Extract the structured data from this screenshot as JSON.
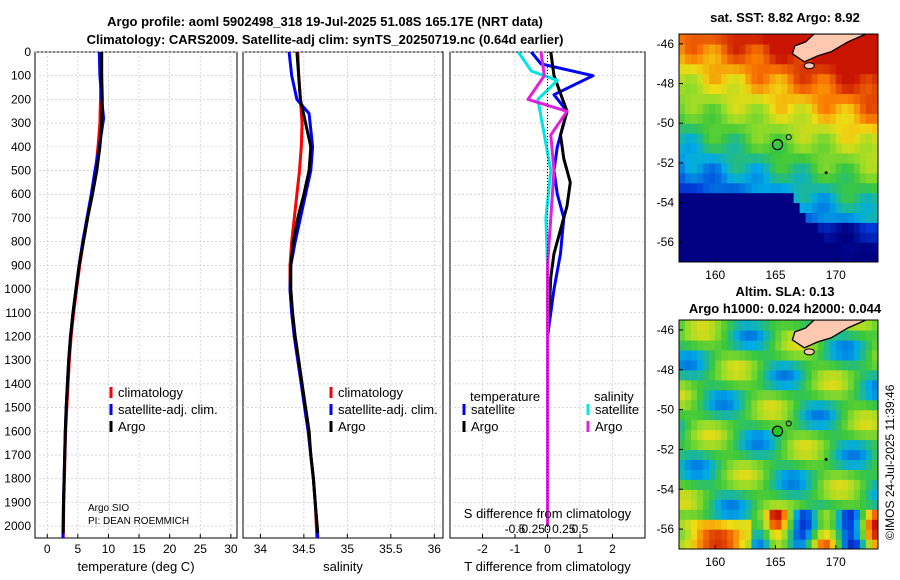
{
  "figure": {
    "title_line1": "Argo profile: aoml 5902498_318 19-Jul-2025 51.08S 165.17E (NRT data)",
    "title_line2": "Climatology: CARS2009. Satellite-adj clim: synTS_20250719.nc (0.64d earlier)",
    "credit": "©IMOS 24-Jul-2025 11:39:46",
    "pi_line1": "Argo SIO",
    "pi_line2": "PI: DEAN ROEMMICH"
  },
  "colors": {
    "climatology": "#ff0000",
    "satellite": "#0000ff",
    "argo": "#000000",
    "sat_salinity": "#00e5e5",
    "argo_salinity": "#e020e0"
  },
  "chart_data": [
    {
      "type": "line",
      "id": "temperature",
      "xlabel": "temperature (deg C)",
      "ylabel": "",
      "xlim": [
        -2,
        31
      ],
      "ylim": [
        2050,
        0
      ],
      "xticks": [
        0,
        5,
        10,
        15,
        20,
        25,
        30
      ],
      "xticklabels": [
        "0",
        "5",
        "10",
        "15",
        "20",
        "25",
        "30"
      ],
      "yticks": [
        0,
        100,
        200,
        300,
        400,
        500,
        600,
        700,
        800,
        900,
        1000,
        1100,
        1200,
        1300,
        1400,
        1500,
        1600,
        1700,
        1800,
        1900,
        2000
      ],
      "legend": [
        "climatology",
        "satellite-adj. clim.",
        "Argo"
      ],
      "series": [
        {
          "name": "climatology",
          "color": "#ff0000",
          "x": [
            8.8,
            8.8,
            8.7,
            8.6,
            8.3,
            7.9,
            7.3,
            6.6,
            5.9,
            5.3,
            4.8,
            4.3,
            3.9,
            3.6,
            3.4,
            3.2,
            3.0,
            2.9,
            2.8,
            2.7,
            2.6
          ],
          "depth": [
            0,
            100,
            200,
            300,
            400,
            500,
            600,
            700,
            800,
            900,
            1000,
            1100,
            1200,
            1300,
            1400,
            1500,
            1600,
            1700,
            1800,
            1900,
            2050
          ]
        },
        {
          "name": "satellite-adj. clim.",
          "color": "#0000ff",
          "x": [
            8.5,
            8.6,
            8.9,
            9.2,
            8.5,
            7.8,
            7.2,
            6.5,
            5.8,
            5.2,
            4.7,
            4.2,
            3.8,
            3.5,
            3.3,
            3.1,
            2.95,
            2.85,
            2.75,
            2.65,
            2.55
          ],
          "depth": [
            0,
            100,
            200,
            280,
            400,
            500,
            600,
            700,
            800,
            900,
            1000,
            1100,
            1200,
            1300,
            1400,
            1500,
            1600,
            1700,
            1800,
            1900,
            2050
          ]
        },
        {
          "name": "Argo",
          "color": "#000000",
          "x": [
            8.9,
            8.9,
            9.0,
            8.9,
            8.6,
            8.1,
            7.4,
            6.6,
            5.9,
            5.2,
            4.7,
            4.2,
            3.8,
            3.5,
            3.3,
            3.1,
            2.95,
            2.85,
            2.75,
            2.65,
            2.6
          ],
          "depth": [
            0,
            100,
            200,
            300,
            400,
            500,
            600,
            700,
            800,
            900,
            1000,
            1100,
            1200,
            1300,
            1400,
            1500,
            1600,
            1700,
            1800,
            1900,
            2030
          ]
        }
      ]
    },
    {
      "type": "line",
      "id": "salinity",
      "xlabel": "salinity",
      "ylabel": "",
      "xlim": [
        33.8,
        36.1
      ],
      "ylim": [
        2050,
        0
      ],
      "xticks": [
        34,
        34.5,
        35,
        35.5,
        36
      ],
      "xticklabels": [
        "34",
        "34.5",
        "35",
        "35.5",
        "36"
      ],
      "legend": [
        "climatology",
        "satellite-adj. clim.",
        "Argo"
      ],
      "series": [
        {
          "name": "climatology",
          "color": "#ff0000",
          "x": [
            34.43,
            34.44,
            34.46,
            34.48,
            34.47,
            34.45,
            34.42,
            34.39,
            34.36,
            34.34,
            34.34,
            34.36,
            34.39,
            34.43,
            34.47,
            34.51,
            34.55,
            34.58,
            34.61,
            34.63,
            34.65
          ],
          "depth": [
            0,
            100,
            200,
            300,
            400,
            500,
            600,
            700,
            800,
            900,
            1000,
            1100,
            1200,
            1300,
            1400,
            1500,
            1600,
            1700,
            1800,
            1900,
            2050
          ]
        },
        {
          "name": "satellite-adj. clim.",
          "color": "#0000ff",
          "x": [
            34.33,
            34.36,
            34.42,
            34.56,
            34.6,
            34.58,
            34.52,
            34.46,
            34.4,
            34.35,
            34.34,
            34.36,
            34.39,
            34.43,
            34.47,
            34.51,
            34.55,
            34.58,
            34.61,
            34.63,
            34.66
          ],
          "depth": [
            0,
            100,
            200,
            260,
            400,
            500,
            600,
            700,
            800,
            900,
            1000,
            1100,
            1200,
            1300,
            1400,
            1500,
            1600,
            1700,
            1800,
            1900,
            2050
          ]
        },
        {
          "name": "Argo",
          "color": "#000000",
          "x": [
            34.42,
            34.44,
            34.46,
            34.52,
            34.58,
            34.56,
            34.5,
            34.43,
            34.38,
            34.35,
            34.35,
            34.37,
            34.4,
            34.44,
            34.48,
            34.52,
            34.56,
            34.58,
            34.61,
            34.63,
            34.66
          ],
          "depth": [
            0,
            100,
            200,
            300,
            400,
            500,
            600,
            700,
            800,
            900,
            1000,
            1100,
            1200,
            1300,
            1400,
            1500,
            1600,
            1700,
            1800,
            1900,
            2030
          ]
        }
      ]
    },
    {
      "type": "line",
      "id": "difference",
      "xlabel": "T difference from climatology",
      "xlabel_top": "S difference from climatology",
      "ylabel": "",
      "xlim": [
        -3,
        3
      ],
      "ylim": [
        2050,
        0
      ],
      "xticks": [
        -2,
        -1,
        0,
        1,
        2
      ],
      "xticklabels": [
        "-2",
        "-1",
        "0",
        "1",
        "2"
      ],
      "s_xticks": [
        -1.0,
        -0.5,
        0,
        0.5,
        1.0
      ],
      "s_xticklabels": [
        "-0.5",
        "-0.25",
        "0",
        "0.25",
        "0.5"
      ],
      "legend_temperature_title": "temperature",
      "legend_salinity_title": "salinity",
      "legend_temperature": [
        "satellite",
        "Argo"
      ],
      "legend_salinity": [
        "satellite",
        "Argo"
      ],
      "series": [
        {
          "name": "temperature satellite",
          "color": "#0000ff",
          "x": [
            -0.5,
            -0.2,
            1.4,
            0.2,
            0.6,
            0.3,
            0.2,
            0.3,
            0.5,
            0.4,
            0.2,
            0.1,
            0.0,
            0.0,
            0.0,
            0.0,
            0.0,
            0.0,
            0.0,
            0.0
          ],
          "depth": [
            0,
            50,
            100,
            180,
            250,
            400,
            500,
            600,
            700,
            850,
            1000,
            1100,
            1200,
            1300,
            1400,
            1500,
            1600,
            1700,
            1800,
            2000
          ]
        },
        {
          "name": "temperature Argo",
          "color": "#000000",
          "x": [
            0.1,
            0.15,
            0.2,
            0.6,
            0.4,
            0.5,
            0.7,
            0.6,
            0.4,
            0.2,
            0.1,
            0.05,
            0.0,
            0.0,
            0.0,
            0.0,
            0.0,
            0.0,
            0.0,
            0.0
          ],
          "depth": [
            0,
            50,
            100,
            250,
            350,
            450,
            550,
            650,
            750,
            850,
            950,
            1100,
            1200,
            1300,
            1400,
            1500,
            1600,
            1700,
            1800,
            2000
          ]
        },
        {
          "name": "salinity satellite",
          "color": "#00e5e5",
          "x": [
            -0.9,
            -0.5,
            0.3,
            -0.3,
            -0.1,
            0.1,
            -0.05,
            0.0,
            0.0,
            0.0,
            0.0,
            0.0
          ],
          "depth": [
            0,
            80,
            120,
            200,
            350,
            500,
            700,
            900,
            1200,
            1500,
            1800,
            2000
          ]
        },
        {
          "name": "salinity Argo",
          "color": "#e020e0",
          "x": [
            -0.2,
            -0.1,
            -0.6,
            0.6,
            0.1,
            0.2,
            0.1,
            0.0,
            0.0,
            0.0,
            0.0,
            0.0
          ],
          "depth": [
            0,
            100,
            200,
            250,
            350,
            500,
            700,
            900,
            1200,
            1500,
            1800,
            2000
          ]
        }
      ]
    },
    {
      "type": "heatmap",
      "id": "sst_map",
      "title": "sat. SST: 8.82 Argo: 8.92",
      "xlim": [
        157,
        173.5
      ],
      "ylim": [
        -57,
        -45.5
      ],
      "xticks": [
        160,
        165,
        170
      ],
      "xticklabels": [
        "160",
        "165",
        "170"
      ],
      "yticks": [
        -46,
        -48,
        -50,
        -52,
        -54,
        -56
      ],
      "yticklabels": [
        "-46",
        "-48",
        "-50",
        "-52",
        "-54",
        "-56"
      ],
      "argo_position": [
        165.17,
        -51.08
      ]
    },
    {
      "type": "heatmap",
      "id": "sla_map",
      "title_line1": "Altim. SLA: 0.13",
      "title_line2": "Argo h1000: 0.024 h2000: 0.044",
      "xlim": [
        157,
        173.5
      ],
      "ylim": [
        -57,
        -45.5
      ],
      "xticks": [
        160,
        165,
        170
      ],
      "xticklabels": [
        "160",
        "165",
        "170"
      ],
      "yticks": [
        -46,
        -48,
        -50,
        -52,
        -54,
        -56
      ],
      "yticklabels": [
        "-46",
        "-48",
        "-50",
        "-52",
        "-54",
        "-56"
      ],
      "argo_position": [
        165.17,
        -51.08
      ]
    }
  ]
}
